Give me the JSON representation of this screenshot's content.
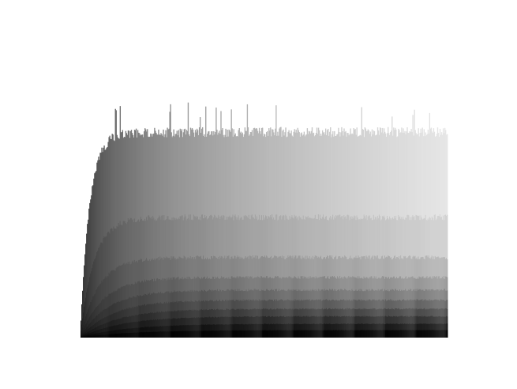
{
  "chart_data": {
    "type": "bar",
    "title": "",
    "xlabel": "",
    "ylabel": "",
    "stacked": true,
    "axes_visible": false,
    "grid": false,
    "legend": "none",
    "bar_count": 460,
    "colors": {
      "background": "#ffffff",
      "darkest_series": "#000000",
      "lightest_series": "#e6e6e6"
    },
    "series_count": 10,
    "bands": [
      {
        "series": 1,
        "color_at_right": "#e6e6e6"
      },
      {
        "series": 2,
        "color_at_right": "#d2d2d2"
      },
      {
        "series": 3,
        "color_at_right": "#b6b6b6"
      },
      {
        "series": 4,
        "color_at_right": "#9a9a9a"
      },
      {
        "series": 5,
        "color_at_right": "#808080"
      },
      {
        "series": 6,
        "color_at_right": "#666666"
      },
      {
        "series": 7,
        "color_at_right": "#4d4d4d"
      },
      {
        "series": 8,
        "color_at_right": "#343434"
      },
      {
        "series": 9,
        "color_at_right": "#1c1c1c"
      },
      {
        "series": 10,
        "color_at_right": "#050505"
      }
    ]
  }
}
